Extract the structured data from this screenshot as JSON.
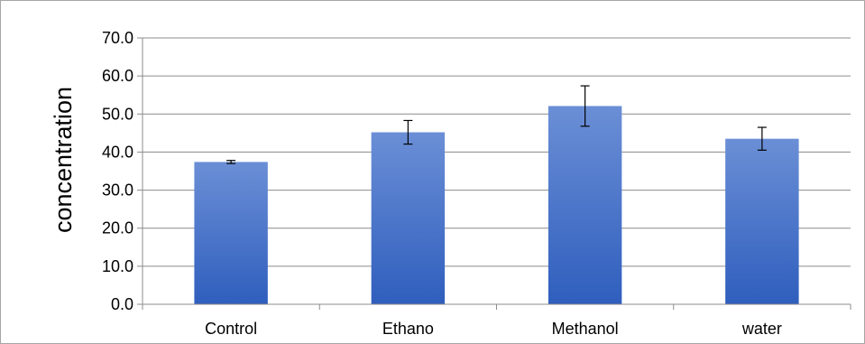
{
  "chart_data": {
    "type": "bar",
    "title": "",
    "xlabel": "",
    "ylabel": "concentration",
    "ylim": [
      0,
      70
    ],
    "ytick_step": 10,
    "ytick_labels": [
      "0.0",
      "10.0",
      "20.0",
      "30.0",
      "40.0",
      "50.0",
      "60.0",
      "70.0"
    ],
    "categories": [
      "Control",
      "Ethano",
      "Methanol",
      "water"
    ],
    "values": [
      37.4,
      45.2,
      52.1,
      43.5
    ],
    "error": [
      0.4,
      3.1,
      5.3,
      3.0
    ],
    "grid": true,
    "legend": "none",
    "colors": {
      "bar_top": "#6b8fd6",
      "bar_bottom": "#2f5ebd",
      "grid": "#8c8c8c",
      "axis": "#8c8c8c",
      "error_bar": "#000000"
    }
  }
}
